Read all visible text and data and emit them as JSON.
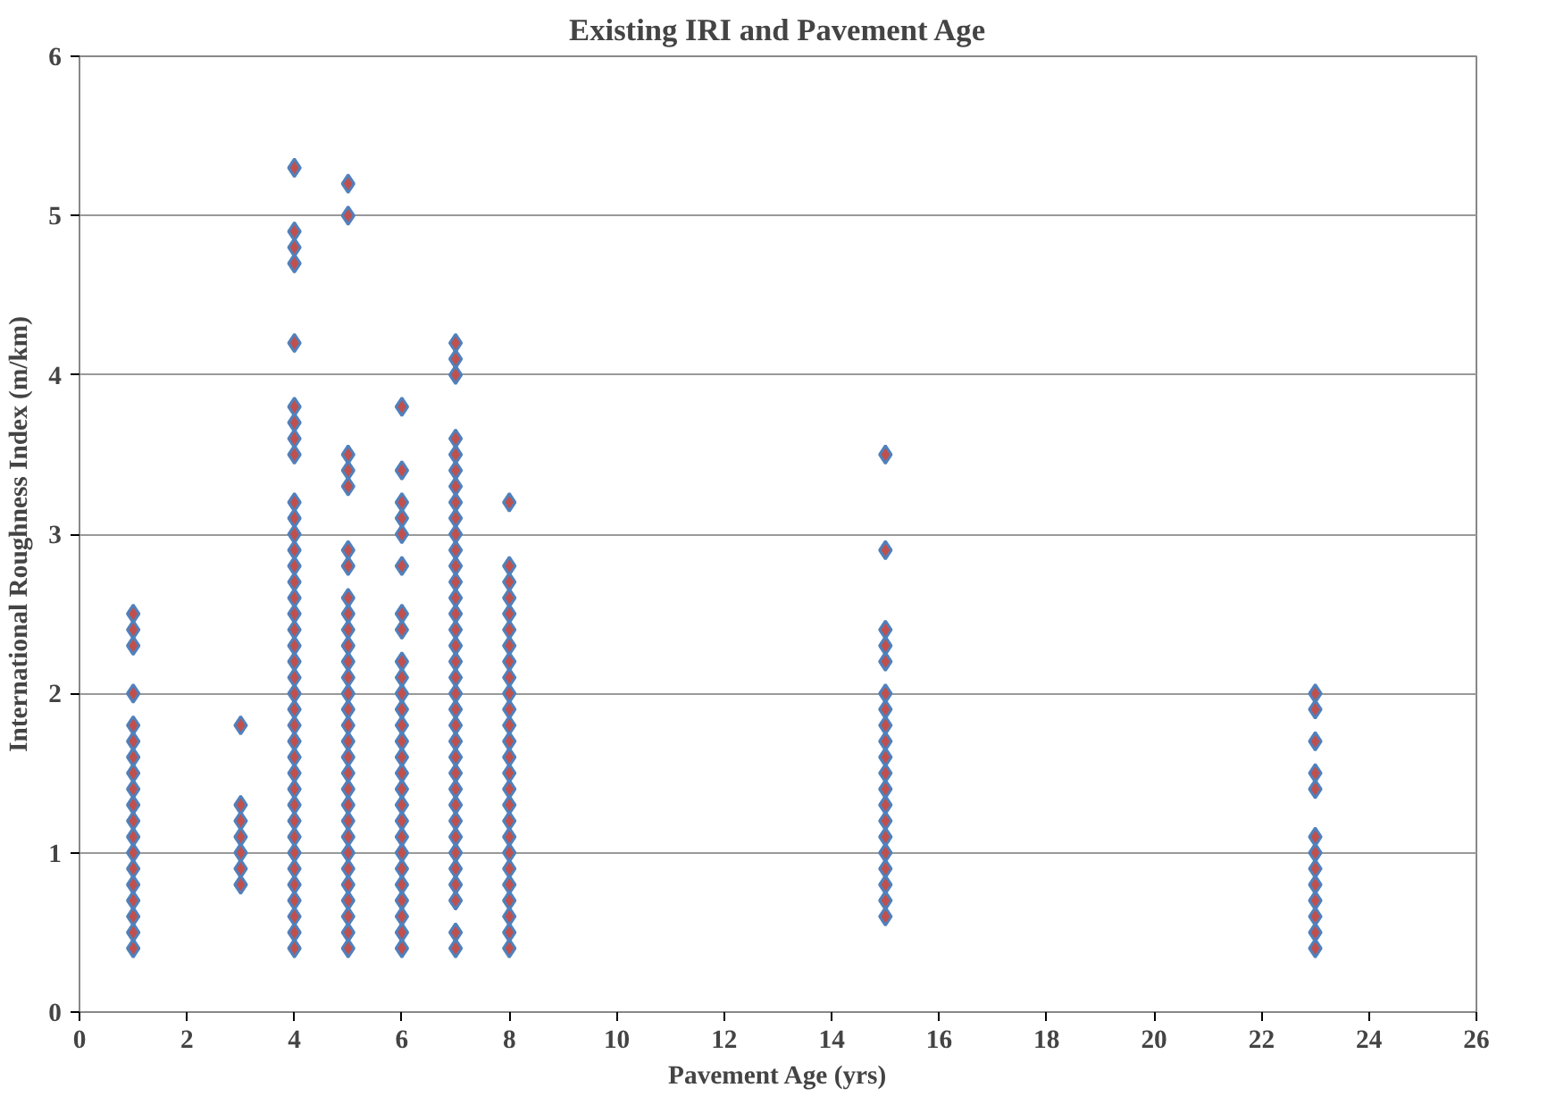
{
  "chart_data": {
    "type": "scatter",
    "title": "Existing IRI and Pavement Age",
    "xlabel": "Pavement Age (yrs)",
    "ylabel": "International Roughness Index (m/km)",
    "xlim": [
      0,
      26
    ],
    "xticks": [
      0,
      2,
      4,
      6,
      8,
      10,
      12,
      14,
      16,
      18,
      20,
      22,
      24,
      26
    ],
    "ylim": [
      0,
      6
    ],
    "yticks": [
      0,
      1,
      2,
      3,
      4,
      5,
      6
    ],
    "grid": "y",
    "marker": "diamond",
    "series": [
      {
        "color": "#c0504d",
        "x": [
          1,
          1,
          1,
          1,
          1,
          1,
          1,
          1,
          1,
          1,
          1,
          1,
          1,
          1,
          1,
          1,
          1,
          1,
          1
        ],
        "values": [
          0.4,
          0.5,
          0.6,
          0.7,
          0.8,
          0.9,
          1.0,
          1.1,
          1.2,
          1.3,
          1.4,
          1.5,
          1.6,
          1.7,
          1.8,
          2.0,
          2.3,
          2.4,
          2.5
        ]
      },
      {
        "color": "#c0504d",
        "x": [
          3,
          3,
          3,
          3,
          3,
          3,
          3
        ],
        "values": [
          0.8,
          0.9,
          1.0,
          1.1,
          1.2,
          1.3,
          1.8
        ]
      },
      {
        "color": "#c0504d",
        "x": [
          4,
          4,
          4,
          4,
          4,
          4,
          4,
          4,
          4,
          4,
          4,
          4,
          4,
          4,
          4,
          4,
          4,
          4,
          4,
          4,
          4,
          4,
          4,
          4,
          4,
          4,
          4,
          4,
          4,
          4,
          4,
          4,
          4,
          4,
          4,
          4,
          4,
          4
        ],
        "values": [
          0.4,
          0.5,
          0.6,
          0.7,
          0.8,
          0.9,
          1.0,
          1.1,
          1.2,
          1.3,
          1.4,
          1.5,
          1.6,
          1.7,
          1.8,
          1.9,
          2.0,
          2.1,
          2.2,
          2.3,
          2.4,
          2.5,
          2.6,
          2.7,
          2.8,
          2.9,
          3.0,
          3.1,
          3.2,
          3.5,
          3.6,
          3.7,
          3.8,
          4.2,
          4.7,
          4.8,
          4.9,
          5.3
        ]
      },
      {
        "color": "#c0504d",
        "x": [
          5,
          5,
          5,
          5,
          5,
          5,
          5,
          5,
          5,
          5,
          5,
          5,
          5,
          5,
          5,
          5,
          5,
          5,
          5,
          5,
          5,
          5,
          5,
          5,
          5,
          5,
          5,
          5,
          5,
          5
        ],
        "values": [
          0.4,
          0.5,
          0.6,
          0.7,
          0.8,
          0.9,
          1.0,
          1.1,
          1.2,
          1.3,
          1.4,
          1.5,
          1.6,
          1.7,
          1.8,
          1.9,
          2.0,
          2.1,
          2.2,
          2.3,
          2.4,
          2.5,
          2.6,
          2.8,
          2.9,
          3.3,
          3.4,
          3.5,
          5.0,
          5.2
        ]
      },
      {
        "color": "#c0504d",
        "x": [
          6,
          6,
          6,
          6,
          6,
          6,
          6,
          6,
          6,
          6,
          6,
          6,
          6,
          6,
          6,
          6,
          6,
          6,
          6,
          6,
          6,
          6,
          6,
          6,
          6,
          6,
          6
        ],
        "values": [
          0.4,
          0.5,
          0.6,
          0.7,
          0.8,
          0.9,
          1.0,
          1.1,
          1.2,
          1.3,
          1.4,
          1.5,
          1.6,
          1.7,
          1.8,
          1.9,
          2.0,
          2.1,
          2.2,
          2.4,
          2.5,
          2.8,
          3.0,
          3.1,
          3.2,
          3.4,
          3.8
        ]
      },
      {
        "color": "#c0504d",
        "x": [
          7,
          7,
          7,
          7,
          7,
          7,
          7,
          7,
          7,
          7,
          7,
          7,
          7,
          7,
          7,
          7,
          7,
          7,
          7,
          7,
          7,
          7,
          7,
          7,
          7,
          7,
          7,
          7,
          7,
          7,
          7,
          7,
          7,
          7,
          7
        ],
        "values": [
          0.4,
          0.5,
          0.7,
          0.8,
          0.9,
          1.0,
          1.1,
          1.2,
          1.3,
          1.4,
          1.5,
          1.6,
          1.7,
          1.8,
          1.9,
          2.0,
          2.1,
          2.2,
          2.3,
          2.4,
          2.5,
          2.6,
          2.7,
          2.8,
          2.9,
          3.0,
          3.1,
          3.2,
          3.3,
          3.4,
          3.5,
          3.6,
          4.0,
          4.1,
          4.2
        ]
      },
      {
        "color": "#c0504d",
        "x": [
          8,
          8,
          8,
          8,
          8,
          8,
          8,
          8,
          8,
          8,
          8,
          8,
          8,
          8,
          8,
          8,
          8,
          8,
          8,
          8,
          8,
          8,
          8,
          8,
          8,
          8
        ],
        "values": [
          0.4,
          0.5,
          0.6,
          0.7,
          0.8,
          0.9,
          1.0,
          1.1,
          1.2,
          1.3,
          1.4,
          1.5,
          1.6,
          1.7,
          1.8,
          1.9,
          2.0,
          2.1,
          2.2,
          2.3,
          2.4,
          2.5,
          2.6,
          2.7,
          2.8,
          3.2
        ]
      },
      {
        "color": "#c0504d",
        "x": [
          15,
          15,
          15,
          15,
          15,
          15,
          15,
          15,
          15,
          15,
          15,
          15,
          15,
          15,
          15,
          15,
          15,
          15,
          15,
          15
        ],
        "values": [
          0.6,
          0.7,
          0.8,
          0.9,
          1.0,
          1.1,
          1.2,
          1.3,
          1.4,
          1.5,
          1.6,
          1.7,
          1.8,
          1.9,
          2.0,
          2.2,
          2.3,
          2.4,
          2.9,
          3.5
        ]
      },
      {
        "color": "#c0504d",
        "x": [
          23,
          23,
          23,
          23,
          23,
          23,
          23,
          23,
          23,
          23,
          23,
          23,
          23
        ],
        "values": [
          0.4,
          0.5,
          0.6,
          0.7,
          0.8,
          0.9,
          1.0,
          1.1,
          1.4,
          1.5,
          1.7,
          1.9,
          2.0
        ]
      }
    ]
  }
}
